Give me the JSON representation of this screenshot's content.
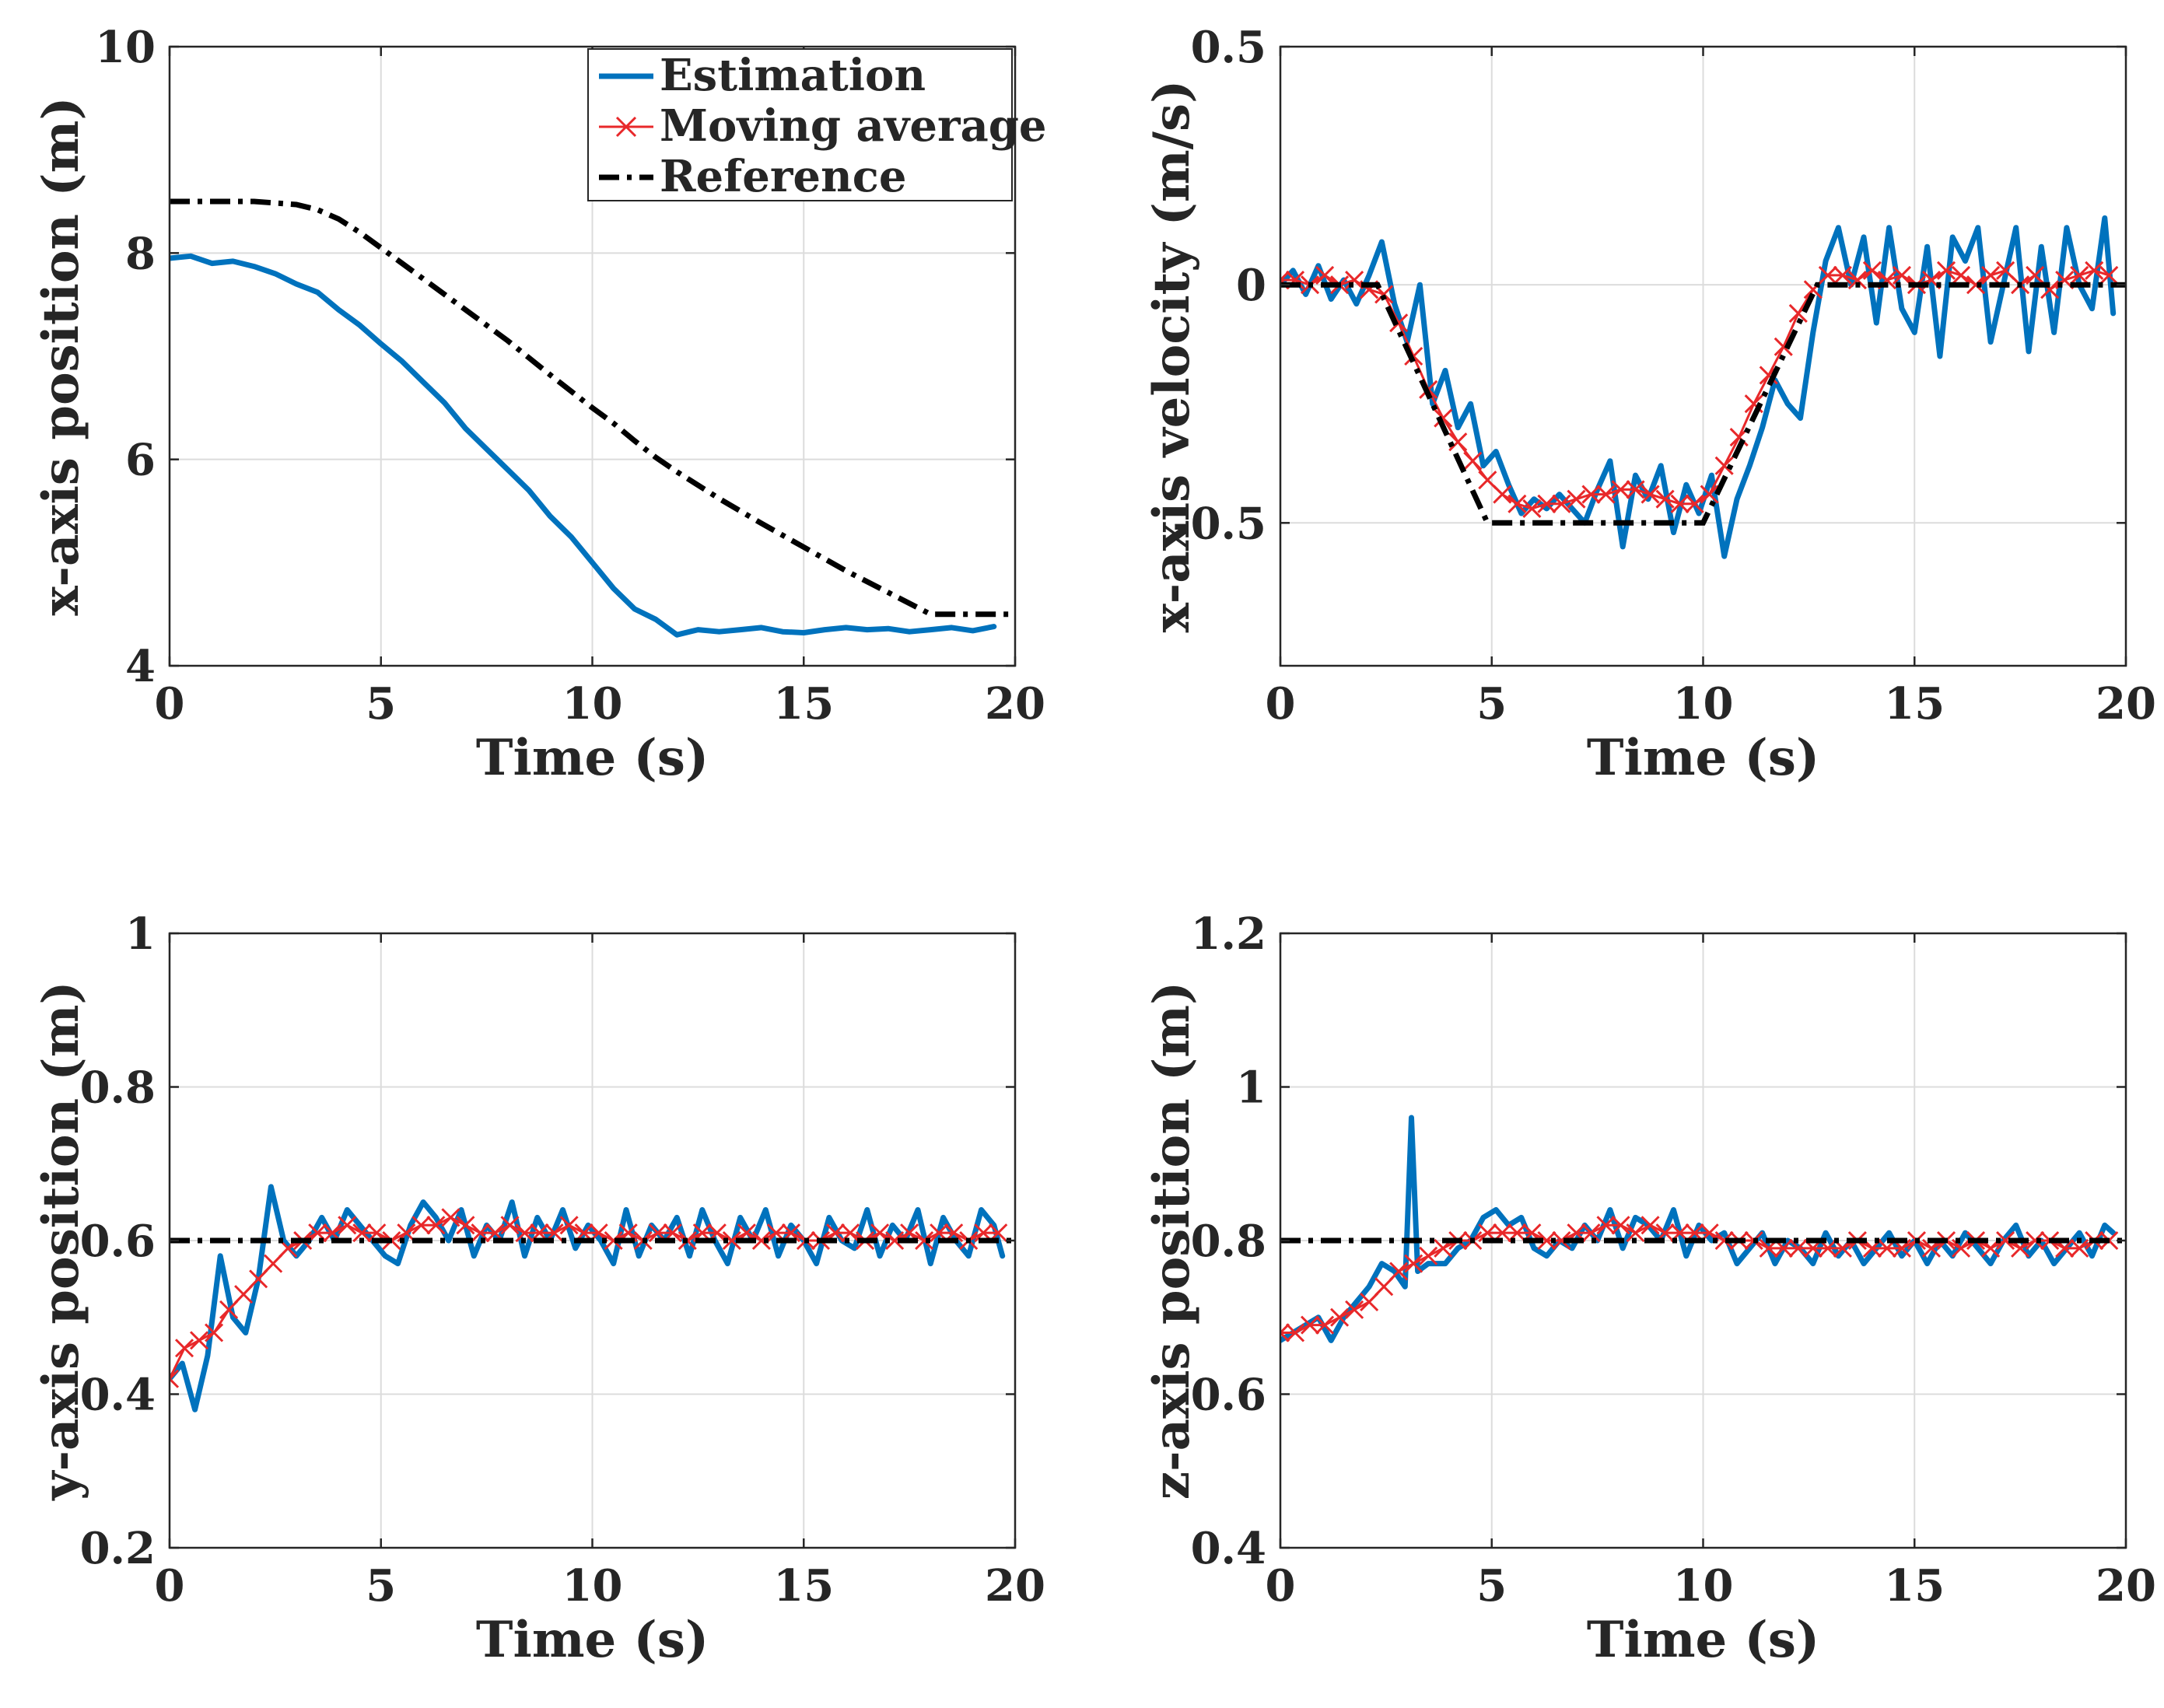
{
  "colors": {
    "estimation": "#0072BD",
    "moving_average": "#E8282A",
    "reference": "#000000",
    "grid": "#DCDCDC",
    "axis": "#262626"
  },
  "legend": {
    "estimation": "Estimation",
    "moving_average": "Moving average",
    "reference": "Reference"
  },
  "chart_data": [
    {
      "type": "line",
      "title": "",
      "xlabel": "Time (s)",
      "ylabel": "x-axis position (m)",
      "xlim": [
        0,
        20
      ],
      "ylim": [
        4,
        10
      ],
      "xticks": [
        0,
        5,
        10,
        15,
        20
      ],
      "xtick_labels": [
        "0",
        "5",
        "10",
        "15",
        "20"
      ],
      "yticks": [
        4,
        6,
        8,
        10
      ],
      "ytick_labels": [
        "4",
        "6",
        "8",
        "10"
      ],
      "grid": true,
      "legend_position": "top-right",
      "series": [
        {
          "name": "Estimation",
          "x": [
            0,
            0.5,
            1,
            1.5,
            2,
            2.5,
            3,
            3.5,
            4,
            4.5,
            5,
            5.5,
            6,
            6.5,
            7,
            7.5,
            8,
            8.5,
            9,
            9.5,
            10,
            10.5,
            11,
            11.5,
            12,
            12.5,
            13,
            13.5,
            14,
            14.5,
            15,
            15.5,
            16,
            16.5,
            17,
            17.5,
            18,
            18.5,
            19,
            19.5
          ],
          "values": [
            7.95,
            7.97,
            7.9,
            7.92,
            7.87,
            7.8,
            7.7,
            7.62,
            7.45,
            7.3,
            7.12,
            6.95,
            6.75,
            6.55,
            6.3,
            6.1,
            5.9,
            5.7,
            5.45,
            5.25,
            5.0,
            4.75,
            4.55,
            4.45,
            4.3,
            4.35,
            4.33,
            4.35,
            4.37,
            4.33,
            4.32,
            4.35,
            4.37,
            4.35,
            4.36,
            4.33,
            4.35,
            4.37,
            4.34,
            4.38
          ]
        },
        {
          "name": "Reference",
          "x": [
            0,
            2,
            3,
            3.5,
            4,
            4.5,
            5,
            6,
            7,
            8,
            9,
            10,
            10.5,
            11,
            11.5,
            12,
            12.5,
            13,
            14,
            16,
            18,
            20
          ],
          "values": [
            8.5,
            8.5,
            8.47,
            8.42,
            8.33,
            8.2,
            8.05,
            7.75,
            7.45,
            7.15,
            6.82,
            6.5,
            6.35,
            6.18,
            6.02,
            5.88,
            5.75,
            5.62,
            5.38,
            4.92,
            4.5,
            4.5
          ]
        }
      ]
    },
    {
      "type": "line",
      "title": "",
      "xlabel": "Time (s)",
      "ylabel": "x-axis velocity (m/s)",
      "xlim": [
        0,
        20
      ],
      "ylim": [
        -0.8,
        0.5
      ],
      "xticks": [
        0,
        5,
        10,
        15,
        20
      ],
      "xtick_labels": [
        "0",
        "5",
        "10",
        "15",
        "20"
      ],
      "yticks": [
        -0.5,
        0,
        0.5
      ],
      "ytick_labels": [
        "-0.5",
        "0",
        "0.5"
      ],
      "grid": true,
      "series": [
        {
          "name": "Estimation",
          "x": [
            0,
            0.3,
            0.6,
            0.9,
            1.2,
            1.5,
            1.8,
            2.1,
            2.4,
            2.7,
            3.0,
            3.3,
            3.6,
            3.9,
            4.2,
            4.5,
            4.8,
            5.1,
            5.4,
            5.7,
            6.0,
            6.3,
            6.6,
            6.9,
            7.2,
            7.5,
            7.8,
            8.1,
            8.4,
            8.7,
            9.0,
            9.3,
            9.6,
            9.9,
            10.2,
            10.5,
            10.8,
            11.1,
            11.4,
            11.7,
            12.0,
            12.3,
            12.6,
            12.9,
            13.2,
            13.5,
            13.8,
            14.1,
            14.4,
            14.7,
            15.0,
            15.3,
            15.6,
            15.9,
            16.2,
            16.5,
            16.8,
            17.1,
            17.4,
            17.7,
            18.0,
            18.3,
            18.6,
            18.9,
            19.2,
            19.5,
            19.7
          ],
          "values": [
            0.0,
            0.03,
            -0.02,
            0.04,
            -0.03,
            0.01,
            -0.04,
            0.02,
            0.09,
            -0.04,
            -0.12,
            0.0,
            -0.25,
            -0.18,
            -0.3,
            -0.25,
            -0.38,
            -0.35,
            -0.42,
            -0.48,
            -0.45,
            -0.47,
            -0.44,
            -0.47,
            -0.5,
            -0.43,
            -0.37,
            -0.55,
            -0.4,
            -0.45,
            -0.38,
            -0.52,
            -0.42,
            -0.48,
            -0.4,
            -0.57,
            -0.45,
            -0.38,
            -0.3,
            -0.2,
            -0.25,
            -0.28,
            -0.1,
            0.05,
            0.12,
            0.0,
            0.1,
            -0.08,
            0.12,
            -0.05,
            -0.1,
            0.08,
            -0.15,
            0.1,
            0.05,
            0.12,
            -0.12,
            0.0,
            0.12,
            -0.14,
            0.08,
            -0.1,
            0.12,
            0.0,
            -0.05,
            0.14,
            -0.06
          ]
        },
        {
          "name": "Moving average",
          "x": [
            0,
            0.35,
            0.7,
            1.05,
            1.4,
            1.75,
            2.1,
            2.45,
            2.8,
            3.15,
            3.5,
            3.85,
            4.2,
            4.55,
            4.9,
            5.25,
            5.6,
            5.95,
            6.3,
            6.65,
            7.0,
            7.35,
            7.7,
            8.05,
            8.4,
            8.75,
            9.1,
            9.45,
            9.8,
            10.15,
            10.5,
            10.85,
            11.2,
            11.55,
            11.9,
            12.25,
            12.6,
            12.95,
            13.3,
            13.65,
            14.0,
            14.35,
            14.7,
            15.05,
            15.4,
            15.75,
            16.1,
            16.45,
            16.8,
            17.15,
            17.5,
            17.85,
            18.2,
            18.55,
            18.9,
            19.25,
            19.6
          ],
          "values": [
            0.01,
            0.01,
            0.0,
            0.02,
            0.0,
            0.01,
            -0.01,
            -0.02,
            -0.08,
            -0.15,
            -0.22,
            -0.28,
            -0.33,
            -0.37,
            -0.41,
            -0.44,
            -0.46,
            -0.47,
            -0.46,
            -0.46,
            -0.45,
            -0.44,
            -0.44,
            -0.43,
            -0.43,
            -0.44,
            -0.45,
            -0.46,
            -0.46,
            -0.44,
            -0.38,
            -0.32,
            -0.25,
            -0.19,
            -0.13,
            -0.06,
            -0.01,
            0.02,
            0.02,
            0.01,
            0.03,
            0.01,
            0.02,
            0.0,
            0.01,
            0.03,
            0.02,
            0.0,
            0.02,
            0.03,
            0.0,
            0.02,
            -0.01,
            0.01,
            0.02,
            0.03,
            0.02
          ]
        },
        {
          "name": "Reference",
          "x": [
            0,
            2.3,
            4.9,
            10.0,
            12.7,
            20
          ],
          "values": [
            0,
            0,
            -0.5,
            -0.5,
            0,
            0
          ]
        }
      ]
    },
    {
      "type": "line",
      "title": "",
      "xlabel": "Time (s)",
      "ylabel": "y-axis position (m)",
      "xlim": [
        0,
        20
      ],
      "ylim": [
        0.2,
        1
      ],
      "xticks": [
        0,
        5,
        10,
        15,
        20
      ],
      "xtick_labels": [
        "0",
        "5",
        "10",
        "15",
        "20"
      ],
      "yticks": [
        0.2,
        0.4,
        0.6,
        0.8,
        1
      ],
      "ytick_labels": [
        "0.2",
        "0.4",
        "0.6",
        "0.8",
        "1"
      ],
      "grid": true,
      "series": [
        {
          "name": "Estimation",
          "x": [
            0,
            0.3,
            0.6,
            0.9,
            1.2,
            1.5,
            1.8,
            2.1,
            2.4,
            2.7,
            3.0,
            3.3,
            3.6,
            3.9,
            4.2,
            4.5,
            4.8,
            5.1,
            5.4,
            5.7,
            6.0,
            6.3,
            6.6,
            6.9,
            7.2,
            7.5,
            7.8,
            8.1,
            8.4,
            8.7,
            9.0,
            9.3,
            9.6,
            9.9,
            10.2,
            10.5,
            10.8,
            11.1,
            11.4,
            11.7,
            12.0,
            12.3,
            12.6,
            12.9,
            13.2,
            13.5,
            13.8,
            14.1,
            14.4,
            14.7,
            15.0,
            15.3,
            15.6,
            15.9,
            16.2,
            16.5,
            16.8,
            17.1,
            17.4,
            17.7,
            18.0,
            18.3,
            18.6,
            18.9,
            19.2,
            19.5,
            19.7
          ],
          "values": [
            0.42,
            0.44,
            0.38,
            0.45,
            0.58,
            0.5,
            0.48,
            0.55,
            0.67,
            0.6,
            0.58,
            0.6,
            0.63,
            0.6,
            0.64,
            0.62,
            0.6,
            0.58,
            0.57,
            0.62,
            0.65,
            0.63,
            0.6,
            0.64,
            0.58,
            0.62,
            0.6,
            0.65,
            0.58,
            0.63,
            0.6,
            0.64,
            0.59,
            0.62,
            0.6,
            0.57,
            0.64,
            0.58,
            0.62,
            0.6,
            0.63,
            0.58,
            0.64,
            0.6,
            0.57,
            0.63,
            0.6,
            0.64,
            0.58,
            0.62,
            0.6,
            0.57,
            0.63,
            0.6,
            0.59,
            0.64,
            0.58,
            0.62,
            0.6,
            0.64,
            0.57,
            0.63,
            0.6,
            0.58,
            0.64,
            0.62,
            0.58
          ]
        },
        {
          "name": "Moving average",
          "x": [
            0,
            0.35,
            0.7,
            1.05,
            1.4,
            1.75,
            2.1,
            2.45,
            2.8,
            3.15,
            3.5,
            3.85,
            4.2,
            4.55,
            4.9,
            5.25,
            5.6,
            5.95,
            6.3,
            6.65,
            7.0,
            7.35,
            7.7,
            8.05,
            8.4,
            8.75,
            9.1,
            9.45,
            9.8,
            10.15,
            10.5,
            10.85,
            11.2,
            11.55,
            11.9,
            12.25,
            12.6,
            12.95,
            13.3,
            13.65,
            14.0,
            14.35,
            14.7,
            15.05,
            15.4,
            15.75,
            16.1,
            16.45,
            16.8,
            17.15,
            17.5,
            17.85,
            18.2,
            18.55,
            18.9,
            19.25,
            19.6
          ],
          "values": [
            0.42,
            0.46,
            0.47,
            0.48,
            0.51,
            0.53,
            0.55,
            0.57,
            0.59,
            0.6,
            0.61,
            0.61,
            0.62,
            0.61,
            0.61,
            0.6,
            0.61,
            0.62,
            0.62,
            0.63,
            0.62,
            0.61,
            0.61,
            0.62,
            0.61,
            0.61,
            0.61,
            0.62,
            0.61,
            0.61,
            0.6,
            0.61,
            0.6,
            0.61,
            0.61,
            0.6,
            0.61,
            0.61,
            0.6,
            0.61,
            0.6,
            0.61,
            0.61,
            0.6,
            0.6,
            0.61,
            0.61,
            0.6,
            0.61,
            0.6,
            0.61,
            0.6,
            0.61,
            0.61,
            0.6,
            0.61,
            0.61
          ]
        },
        {
          "name": "Reference",
          "x": [
            0,
            20
          ],
          "values": [
            0.6,
            0.6
          ]
        }
      ]
    },
    {
      "type": "line",
      "title": "",
      "xlabel": "Time (s)",
      "ylabel": "z-axis position (m)",
      "xlim": [
        0,
        20
      ],
      "ylim": [
        0.4,
        1.2
      ],
      "xticks": [
        0,
        5,
        10,
        15,
        20
      ],
      "xtick_labels": [
        "0",
        "5",
        "10",
        "15",
        "20"
      ],
      "yticks": [
        0.4,
        0.6,
        0.8,
        1,
        1.2
      ],
      "ytick_labels": [
        "0.4",
        "0.6",
        "0.8",
        "1",
        "1.2"
      ],
      "grid": true,
      "series": [
        {
          "name": "Estimation",
          "x": [
            0,
            0.3,
            0.6,
            0.9,
            1.2,
            1.5,
            1.8,
            2.1,
            2.4,
            2.7,
            2.95,
            3.1,
            3.25,
            3.5,
            3.9,
            4.2,
            4.5,
            4.8,
            5.1,
            5.4,
            5.7,
            6.0,
            6.3,
            6.6,
            6.9,
            7.2,
            7.5,
            7.8,
            8.1,
            8.4,
            8.7,
            9.0,
            9.3,
            9.6,
            9.9,
            10.2,
            10.5,
            10.8,
            11.1,
            11.4,
            11.7,
            12.0,
            12.3,
            12.6,
            12.9,
            13.2,
            13.5,
            13.8,
            14.1,
            14.4,
            14.7,
            15.0,
            15.3,
            15.6,
            15.9,
            16.2,
            16.5,
            16.8,
            17.1,
            17.4,
            17.7,
            18.0,
            18.3,
            18.6,
            18.9,
            19.2,
            19.5,
            19.7
          ],
          "values": [
            0.67,
            0.68,
            0.69,
            0.7,
            0.67,
            0.7,
            0.72,
            0.74,
            0.77,
            0.76,
            0.74,
            0.96,
            0.76,
            0.77,
            0.77,
            0.79,
            0.8,
            0.83,
            0.84,
            0.82,
            0.83,
            0.79,
            0.78,
            0.8,
            0.79,
            0.82,
            0.8,
            0.84,
            0.79,
            0.83,
            0.82,
            0.8,
            0.84,
            0.78,
            0.82,
            0.8,
            0.81,
            0.77,
            0.79,
            0.81,
            0.77,
            0.8,
            0.79,
            0.77,
            0.81,
            0.78,
            0.8,
            0.77,
            0.79,
            0.81,
            0.78,
            0.8,
            0.77,
            0.8,
            0.78,
            0.81,
            0.79,
            0.77,
            0.8,
            0.82,
            0.78,
            0.8,
            0.77,
            0.79,
            0.81,
            0.78,
            0.82,
            0.81
          ]
        },
        {
          "name": "Moving average",
          "x": [
            0,
            0.35,
            0.7,
            1.05,
            1.4,
            1.75,
            2.1,
            2.45,
            2.8,
            3.15,
            3.5,
            3.85,
            4.2,
            4.55,
            4.9,
            5.25,
            5.6,
            5.95,
            6.3,
            6.65,
            7.0,
            7.35,
            7.7,
            8.05,
            8.4,
            8.75,
            9.1,
            9.45,
            9.8,
            10.15,
            10.5,
            10.85,
            11.2,
            11.55,
            11.9,
            12.25,
            12.6,
            12.95,
            13.3,
            13.65,
            14.0,
            14.35,
            14.7,
            15.05,
            15.4,
            15.75,
            16.1,
            16.45,
            16.8,
            17.15,
            17.5,
            17.85,
            18.2,
            18.55,
            18.9,
            19.25,
            19.6
          ],
          "values": [
            0.68,
            0.68,
            0.69,
            0.69,
            0.7,
            0.71,
            0.72,
            0.74,
            0.76,
            0.77,
            0.78,
            0.79,
            0.8,
            0.8,
            0.81,
            0.81,
            0.81,
            0.81,
            0.8,
            0.8,
            0.81,
            0.81,
            0.82,
            0.82,
            0.81,
            0.82,
            0.81,
            0.81,
            0.81,
            0.81,
            0.8,
            0.8,
            0.8,
            0.79,
            0.79,
            0.79,
            0.79,
            0.79,
            0.79,
            0.8,
            0.79,
            0.79,
            0.79,
            0.8,
            0.79,
            0.8,
            0.79,
            0.8,
            0.79,
            0.8,
            0.79,
            0.8,
            0.8,
            0.79,
            0.79,
            0.8,
            0.8
          ]
        },
        {
          "name": "Reference",
          "x": [
            0,
            20
          ],
          "values": [
            0.8,
            0.8
          ]
        }
      ]
    }
  ]
}
